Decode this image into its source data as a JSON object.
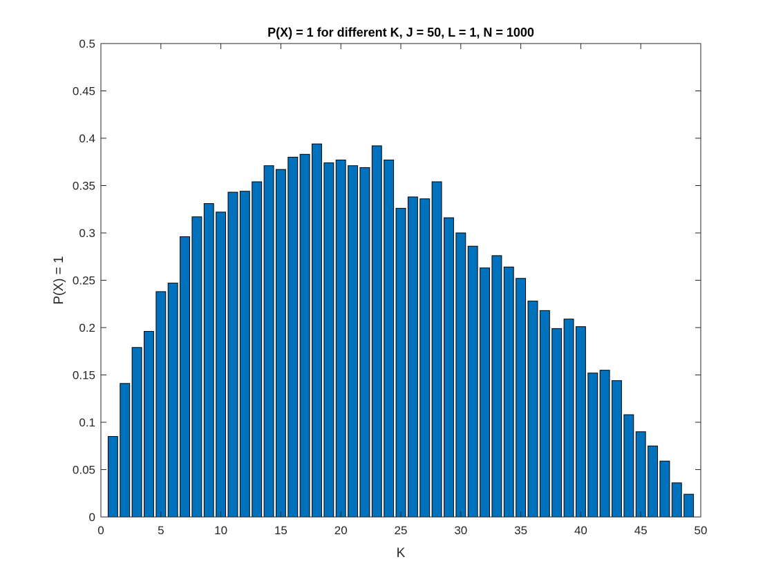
{
  "chart_data": {
    "type": "bar",
    "title": "P(X) = 1 for different K, J = 50, L = 1, N = 1000",
    "xlabel": "K",
    "ylabel": "P(X) = 1",
    "xlim": [
      0,
      50
    ],
    "ylim": [
      0,
      0.5
    ],
    "x_ticks": [
      "0",
      "5",
      "10",
      "15",
      "20",
      "25",
      "30",
      "35",
      "40",
      "45",
      "50"
    ],
    "y_ticks": [
      "0",
      "0.05",
      "0.1",
      "0.15",
      "0.2",
      "0.25",
      "0.3",
      "0.35",
      "0.4",
      "0.45",
      "0.5"
    ],
    "grid": false,
    "bar_color": "#0072BD",
    "x": [
      1,
      2,
      3,
      4,
      5,
      6,
      7,
      8,
      9,
      10,
      11,
      12,
      13,
      14,
      15,
      16,
      17,
      18,
      19,
      20,
      21,
      22,
      23,
      24,
      25,
      26,
      27,
      28,
      29,
      30,
      31,
      32,
      33,
      34,
      35,
      36,
      37,
      38,
      39,
      40,
      41,
      42,
      43,
      44,
      45,
      46,
      47,
      48,
      49
    ],
    "values": [
      0.085,
      0.141,
      0.179,
      0.196,
      0.238,
      0.247,
      0.296,
      0.317,
      0.331,
      0.322,
      0.343,
      0.344,
      0.354,
      0.371,
      0.367,
      0.38,
      0.383,
      0.394,
      0.374,
      0.377,
      0.371,
      0.369,
      0.392,
      0.377,
      0.326,
      0.338,
      0.336,
      0.354,
      0.316,
      0.3,
      0.286,
      0.263,
      0.276,
      0.264,
      0.252,
      0.228,
      0.218,
      0.199,
      0.209,
      0.201,
      0.152,
      0.155,
      0.144,
      0.108,
      0.09,
      0.075,
      0.059,
      0.036,
      0.024
    ]
  }
}
